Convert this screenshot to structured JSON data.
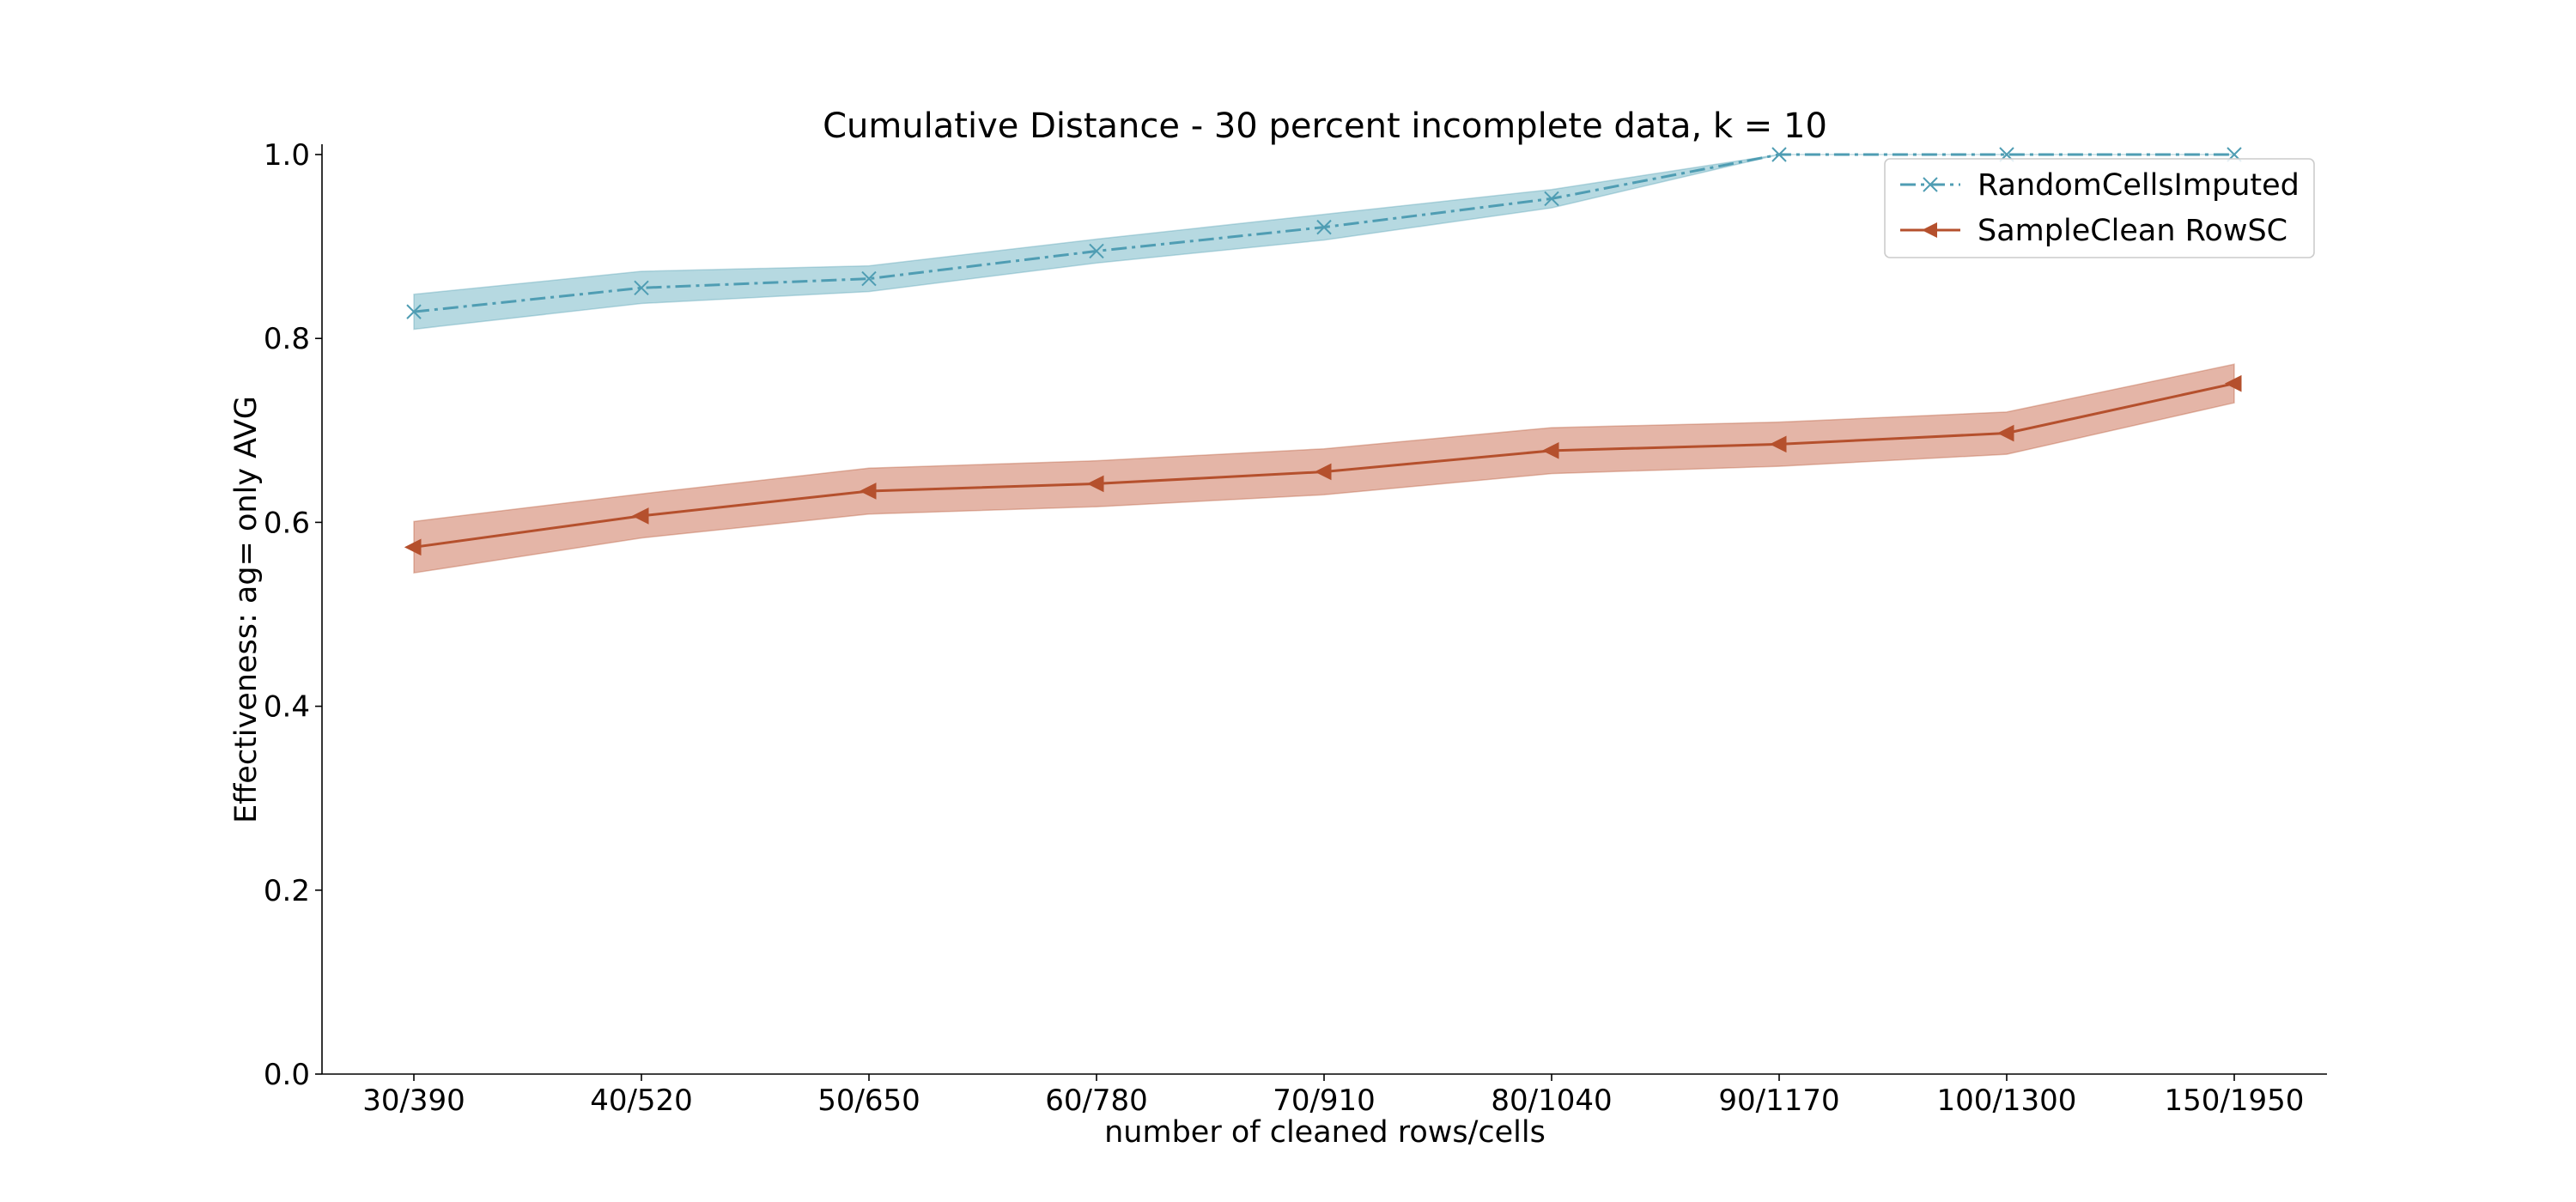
{
  "chart_data": {
    "type": "line",
    "title": "Cumulative Distance - 30 percent incomplete data, k = 10",
    "xlabel": "number of cleaned rows/cells",
    "ylabel": "Effectiveness: ag= only AVG",
    "categories": [
      "30/390",
      "40/520",
      "50/650",
      "60/780",
      "70/910",
      "80/1040",
      "90/1170",
      "100/1300",
      "150/1950"
    ],
    "ylim": [
      0.0,
      1.0
    ],
    "yticks": [
      "0.0",
      "0.2",
      "0.4",
      "0.6",
      "0.8",
      "1.0"
    ],
    "grid": false,
    "legend_position": "top-right",
    "series": [
      {
        "name": "RandomCellsImputed",
        "color": "#4f9db3",
        "fill_color": "#a9d2dc",
        "line_style": "dash-dot",
        "marker": "x",
        "values": [
          0.829,
          0.855,
          0.865,
          0.895,
          0.921,
          0.952,
          1.0,
          1.0,
          1.0
        ],
        "lower": [
          0.81,
          0.838,
          0.851,
          0.882,
          0.907,
          0.942,
          1.0,
          1.0,
          1.0
        ],
        "upper": [
          0.848,
          0.873,
          0.879,
          0.908,
          0.935,
          0.962,
          1.0,
          1.0,
          1.0
        ]
      },
      {
        "name": "SampleClean RowSC",
        "color": "#b5502d",
        "fill_color": "#dfa898",
        "line_style": "solid",
        "marker": "triangle-left",
        "values": [
          0.573,
          0.607,
          0.634,
          0.642,
          0.655,
          0.678,
          0.685,
          0.697,
          0.751
        ],
        "lower": [
          0.545,
          0.583,
          0.609,
          0.617,
          0.63,
          0.653,
          0.661,
          0.674,
          0.73
        ],
        "upper": [
          0.601,
          0.631,
          0.659,
          0.667,
          0.68,
          0.703,
          0.709,
          0.72,
          0.772
        ]
      }
    ]
  }
}
